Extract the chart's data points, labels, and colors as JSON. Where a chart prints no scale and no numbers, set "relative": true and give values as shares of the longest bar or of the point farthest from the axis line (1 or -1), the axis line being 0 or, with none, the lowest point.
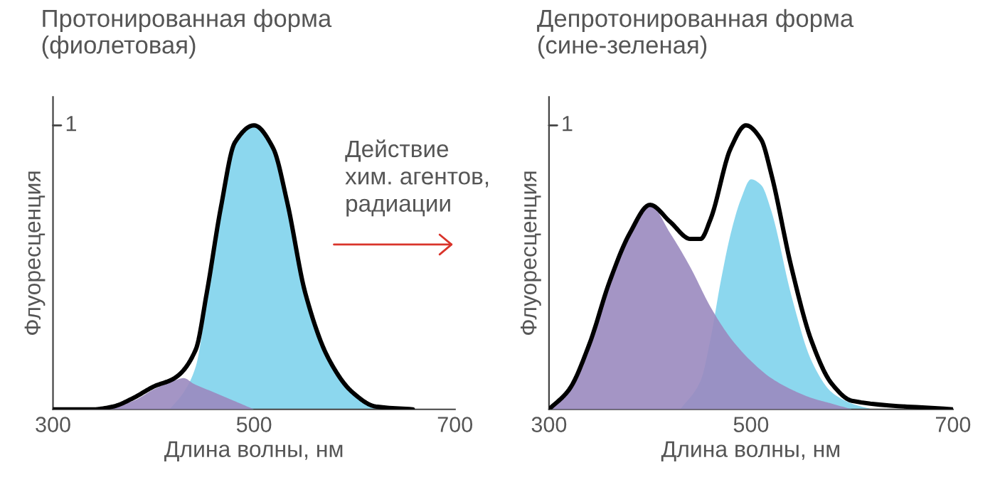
{
  "chart_data": [
    {
      "type": "area",
      "title": "Протонированная форма\n(фиолетовая)",
      "xlabel": "Длина волны, нм",
      "ylabel": "Флуоресценция",
      "relative": true,
      "xlim": [
        300,
        700
      ],
      "xticks": [
        300,
        500,
        700
      ],
      "grid": false,
      "legend": false,
      "annotations": [
        "1",
        "Действие\nхим. агентов,\nрадиации"
      ],
      "series": [
        {
          "type": "area",
          "color": "#7fd3ec",
          "x": [
            416,
            430,
            442,
            453,
            467,
            481,
            500,
            519,
            533,
            551,
            574,
            598,
            621,
            658
          ],
          "values": [
            0,
            0.06,
            0.15,
            0.38,
            0.71,
            0.94,
            1,
            0.92,
            0.73,
            0.41,
            0.18,
            0.06,
            0.01,
            0
          ]
        },
        {
          "type": "area",
          "color": "#9a8abf",
          "x": [
            330,
            360,
            380,
            400,
            420,
            430,
            440,
            460,
            480,
            500
          ],
          "values": [
            0,
            0.01,
            0.03,
            0.07,
            0.1,
            0.11,
            0.09,
            0.06,
            0.03,
            0
          ]
        },
        {
          "type": "line",
          "color": "#000000",
          "x": [
            300,
            340,
            360,
            380,
            400,
            421,
            442,
            453,
            467,
            481,
            500,
            519,
            533,
            551,
            574,
            598,
            621,
            658
          ],
          "values": [
            0,
            0,
            0.01,
            0.04,
            0.08,
            0.11,
            0.21,
            0.41,
            0.71,
            0.94,
            1,
            0.92,
            0.73,
            0.41,
            0.18,
            0.06,
            0.01,
            0
          ]
        }
      ]
    },
    {
      "type": "area",
      "title": "Депротонированная форма\n(сине-зеленая)",
      "xlabel": "Длина волны, нм",
      "ylabel": "Флуоресценция",
      "relative": true,
      "xlim": [
        300,
        700
      ],
      "xticks": [
        300,
        500,
        700
      ],
      "grid": false,
      "legend": false,
      "annotations": [
        "1"
      ],
      "series": [
        {
          "type": "area",
          "color": "#7fd3ec",
          "x": [
            430,
            450,
            460,
            470,
            480,
            490,
            500,
            510,
            520,
            540,
            560,
            580,
            600,
            620
          ],
          "values": [
            0,
            0.1,
            0.25,
            0.45,
            0.62,
            0.74,
            0.81,
            0.79,
            0.7,
            0.4,
            0.17,
            0.06,
            0.02,
            0
          ]
        },
        {
          "type": "area",
          "color": "#9a8abf",
          "x": [
            300,
            320,
            340,
            360,
            380,
            400,
            420,
            440,
            460,
            480,
            500,
            520,
            540,
            560,
            580,
            600
          ],
          "values": [
            0,
            0.07,
            0.23,
            0.45,
            0.62,
            0.72,
            0.62,
            0.5,
            0.36,
            0.25,
            0.17,
            0.11,
            0.07,
            0.04,
            0.02,
            0
          ]
        },
        {
          "type": "line",
          "color": "#000000",
          "x": [
            300,
            320,
            340,
            360,
            380,
            400,
            420,
            440,
            450,
            460,
            480,
            495,
            510,
            520,
            540,
            560,
            580,
            600,
            700
          ],
          "values": [
            0,
            0.07,
            0.23,
            0.45,
            0.62,
            0.72,
            0.66,
            0.6,
            0.6,
            0.67,
            0.92,
            1,
            0.95,
            0.83,
            0.5,
            0.24,
            0.09,
            0.03,
            0
          ]
        }
      ]
    }
  ]
}
